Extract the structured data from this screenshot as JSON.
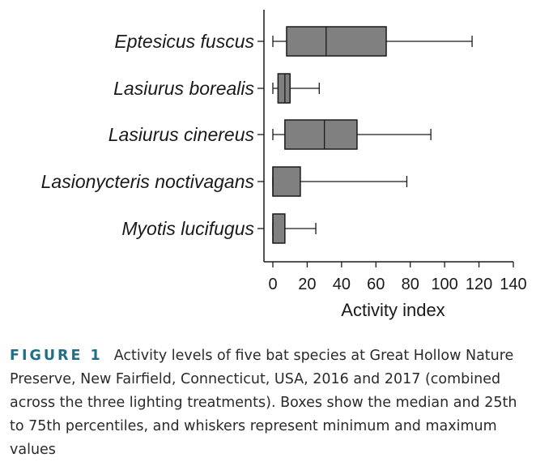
{
  "chart_data": {
    "type": "boxplot",
    "orientation": "horizontal",
    "xlabel": "Activity index",
    "xlim": [
      0,
      140
    ],
    "xticks": [
      0,
      20,
      40,
      60,
      80,
      100,
      120,
      140
    ],
    "xtick_labels": [
      "0",
      "20",
      "40",
      "60",
      "80",
      "100",
      "120",
      "140"
    ],
    "box_color": "#808080",
    "categories": [
      "Eptesicus fuscus",
      "Lasiurus borealis",
      "Lasiurus cinereus",
      "Lasionycteris noctivagans",
      "Myotis lucifugus"
    ],
    "series": [
      {
        "category": "Eptesicus fuscus",
        "min": 0,
        "q1": 8,
        "median": 31,
        "q3": 66,
        "max": 116
      },
      {
        "category": "Lasiurus borealis",
        "min": 0,
        "q1": 3,
        "median": 7,
        "q3": 10,
        "max": 27
      },
      {
        "category": "Lasiurus cinereus",
        "min": 0,
        "q1": 7,
        "median": 30,
        "q3": 49,
        "max": 92
      },
      {
        "category": "Lasionycteris noctivagans",
        "min": 0,
        "q1": 0,
        "median": 0,
        "q3": 16,
        "max": 78
      },
      {
        "category": "Myotis lucifugus",
        "min": 0,
        "q1": 0,
        "median": 0,
        "q3": 7,
        "max": 25
      }
    ]
  },
  "caption": {
    "label": "FIGURE 1",
    "text": "Activity levels of five bat species at Great Hollow Nature Preserve, New Fairfield, Connecticut, USA, 2016 and 2017 (combined across the three lighting treatments). Boxes show the median and 25th to 75th percentiles, and whiskers represent minimum and maximum values"
  }
}
